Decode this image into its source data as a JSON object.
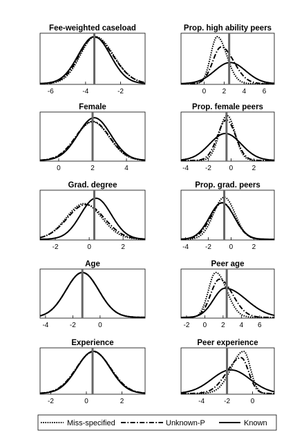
{
  "chart_data": [
    {
      "type": "line",
      "title": "Fee-weighted caseload",
      "xlim": [
        -6.6,
        -0.6
      ],
      "xticks": [
        -6,
        -4,
        -2
      ],
      "vline": -3.5,
      "series": [
        {
          "name": "Miss-specified",
          "peak": -3.45,
          "sd": 0.95,
          "amp": 1.0,
          "skew": 0.1
        },
        {
          "name": "Unknown-P",
          "peak": -3.5,
          "sd": 0.97,
          "amp": 0.99,
          "skew": 0.1
        },
        {
          "name": "Known",
          "peak": -3.5,
          "sd": 0.92,
          "amp": 1.0,
          "skew": 0.0
        }
      ]
    },
    {
      "type": "line",
      "title": "Prop. high ability peers",
      "xlim": [
        -2.3,
        7.0
      ],
      "xticks": [
        0,
        2,
        4,
        6
      ],
      "vline": 2.5,
      "series": [
        {
          "name": "Miss-specified",
          "peak": 1.3,
          "sd": 0.8,
          "amp": 1.0,
          "skew": 0.2
        },
        {
          "name": "Unknown-P",
          "peak": 1.7,
          "sd": 1.05,
          "amp": 0.78,
          "skew": 0.2
        },
        {
          "name": "Known",
          "peak": 2.6,
          "sd": 1.55,
          "amp": 0.45,
          "skew": 0.0
        }
      ]
    },
    {
      "type": "line",
      "title": "Female",
      "xlim": [
        -1.1,
        5.1
      ],
      "xticks": [
        0,
        2,
        4
      ],
      "vline": 2.0,
      "series": [
        {
          "name": "Miss-specified",
          "peak": 2.0,
          "sd": 0.98,
          "amp": 0.86,
          "skew": 0.0
        },
        {
          "name": "Unknown-P",
          "peak": 2.0,
          "sd": 1.0,
          "amp": 0.87,
          "skew": 0.0
        },
        {
          "name": "Known",
          "peak": 2.1,
          "sd": 0.97,
          "amp": 0.95,
          "skew": 0.0
        }
      ]
    },
    {
      "type": "line",
      "title": "Prop. female peers",
      "xlim": [
        -4.4,
        3.8
      ],
      "xticks": [
        -4,
        -2,
        0,
        2
      ],
      "vline": -0.4,
      "series": [
        {
          "name": "Miss-specified",
          "peak": -0.35,
          "sd": 0.7,
          "amp": 1.0,
          "skew": 0.0
        },
        {
          "name": "Unknown-P",
          "peak": -0.4,
          "sd": 0.8,
          "amp": 0.9,
          "skew": 0.0
        },
        {
          "name": "Known",
          "peak": -0.5,
          "sd": 1.4,
          "amp": 0.6,
          "skew": 0.0
        }
      ]
    },
    {
      "type": "line",
      "title": "Grad. degree",
      "xlim": [
        -2.9,
        3.3
      ],
      "xticks": [
        -2,
        0,
        2
      ],
      "vline": 0.3,
      "series": [
        {
          "name": "Miss-specified",
          "peak": -0.3,
          "sd": 1.05,
          "amp": 0.78,
          "skew": 0.0
        },
        {
          "name": "Unknown-P",
          "peak": -0.2,
          "sd": 1.1,
          "amp": 0.76,
          "skew": 0.0
        },
        {
          "name": "Known",
          "peak": 0.4,
          "sd": 0.9,
          "amp": 0.9,
          "skew": 0.0
        }
      ]
    },
    {
      "type": "line",
      "title": "Prop. grad. peers",
      "xlim": [
        -4.4,
        3.8
      ],
      "xticks": [
        -4,
        -2,
        0,
        2
      ],
      "vline": -0.6,
      "series": [
        {
          "name": "Miss-specified",
          "peak": -0.6,
          "sd": 0.95,
          "amp": 0.92,
          "skew": 0.0
        },
        {
          "name": "Unknown-P",
          "peak": -0.75,
          "sd": 1.05,
          "amp": 0.8,
          "skew": 0.0
        },
        {
          "name": "Known",
          "peak": -0.8,
          "sd": 1.1,
          "amp": 0.8,
          "skew": 0.0
        }
      ]
    },
    {
      "type": "line",
      "title": "Age",
      "xlim": [
        -4.4,
        3.3
      ],
      "xticks": [
        -4,
        -2,
        0
      ],
      "vline": -1.3,
      "series": [
        {
          "name": "Miss-specified",
          "peak": -1.3,
          "sd": 1.2,
          "amp": 1.0,
          "skew": 0.0
        },
        {
          "name": "Unknown-P",
          "peak": -1.3,
          "sd": 1.2,
          "amp": 1.0,
          "skew": 0.0
        },
        {
          "name": "Known",
          "peak": -1.3,
          "sd": 1.2,
          "amp": 1.0,
          "skew": 0.0
        }
      ]
    },
    {
      "type": "line",
      "title": "Peer age",
      "xlim": [
        -2.6,
        7.6
      ],
      "xticks": [
        -2,
        0,
        2,
        4,
        6
      ],
      "vline": 2.4,
      "series": [
        {
          "name": "Miss-specified",
          "peak": 1.2,
          "sd": 1.0,
          "amp": 1.0,
          "skew": 0.2
        },
        {
          "name": "Unknown-P",
          "peak": 1.6,
          "sd": 1.2,
          "amp": 0.85,
          "skew": 0.2
        },
        {
          "name": "Known",
          "peak": 2.2,
          "sd": 1.8,
          "amp": 0.65,
          "skew": 0.3
        }
      ]
    },
    {
      "type": "line",
      "title": "Experience",
      "xlim": [
        -2.6,
        3.3
      ],
      "xticks": [
        -2,
        0,
        2
      ],
      "vline": 0.35,
      "series": [
        {
          "name": "Miss-specified",
          "peak": 0.4,
          "sd": 0.95,
          "amp": 1.0,
          "skew": 0.0
        },
        {
          "name": "Unknown-P",
          "peak": 0.4,
          "sd": 0.97,
          "amp": 0.99,
          "skew": 0.0
        },
        {
          "name": "Known",
          "peak": 0.4,
          "sd": 0.93,
          "amp": 1.0,
          "skew": 0.0
        }
      ]
    },
    {
      "type": "line",
      "title": "Peer experience",
      "xlim": [
        -5.6,
        1.7
      ],
      "xticks": [
        -4,
        -2,
        0
      ],
      "vline": -2.0,
      "series": [
        {
          "name": "Miss-specified",
          "peak": -0.7,
          "sd": 0.75,
          "amp": 1.0,
          "skew": -0.3
        },
        {
          "name": "Unknown-P",
          "peak": -0.9,
          "sd": 0.85,
          "amp": 0.85,
          "skew": -0.3
        },
        {
          "name": "Known",
          "peak": -1.7,
          "sd": 1.5,
          "amp": 0.56,
          "skew": 0.0
        }
      ]
    }
  ],
  "legend": {
    "placement": "bottom",
    "entries": [
      {
        "label": "Miss-specified",
        "style": "dotted"
      },
      {
        "label": "Unknown-P",
        "style": "dashdot"
      },
      {
        "label": "Known",
        "style": "solid"
      }
    ]
  },
  "colors": {
    "line": "#000000",
    "vline": "#666666",
    "axis": "#000000",
    "background": "#ffffff"
  }
}
